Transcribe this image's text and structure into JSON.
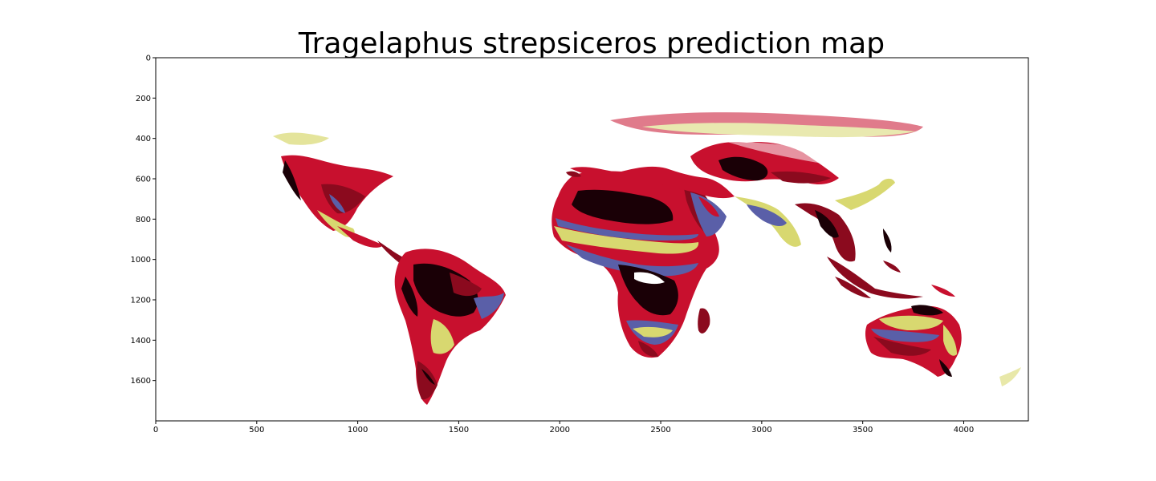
{
  "title": "Tragelaphus strepsiceros prediction map",
  "colors": {
    "high": "#1a0006",
    "red": "#c8102e",
    "crimson": "#8b0a1e",
    "blue": "#5a5fa8",
    "yellow": "#d8d870",
    "frame": "#000000",
    "background": "#ffffff"
  },
  "chart_data": {
    "type": "heatmap",
    "title": "Tragelaphus strepsiceros prediction map",
    "xlabel": "",
    "ylabel": "",
    "xlim": [
      0,
      4320
    ],
    "ylim": [
      1800,
      0
    ],
    "xticks": [
      0,
      500,
      1000,
      1500,
      2000,
      2500,
      3000,
      3500,
      4000
    ],
    "yticks": [
      0,
      200,
      400,
      600,
      800,
      1000,
      1200,
      1400,
      1600
    ],
    "grid": false,
    "colorbar": false
  }
}
